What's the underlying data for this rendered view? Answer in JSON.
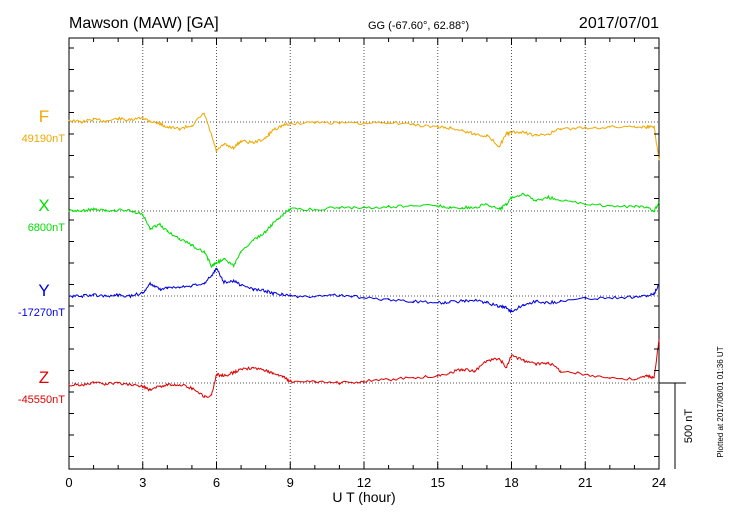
{
  "header": {
    "station": "Mawson (MAW)  [GA]",
    "coords": "GG (-67.60°,  62.88°)",
    "date": "2017/07/01"
  },
  "footer_note": "Plotted at 2017/08/01 01:36 UT",
  "scale_label": "500 nT",
  "chart_data": {
    "type": "line",
    "title": "Mawson (MAW)  [GA]",
    "xlabel": "U T (hour)",
    "xlim": [
      0,
      24
    ],
    "xticks": [
      "0",
      "3",
      "6",
      "9",
      "12",
      "15",
      "18",
      "21",
      "24"
    ],
    "grid": true,
    "y_units": "nT",
    "scale_bar_nT": 500,
    "series": [
      {
        "name": "F",
        "baseline_label": "49190nT",
        "baseline": 49190,
        "color": "#f0a800",
        "x": [
          0,
          0.5,
          1,
          1.5,
          2,
          2.5,
          3,
          3.3,
          3.7,
          4,
          4.5,
          5,
          5.5,
          5.8,
          6,
          6.3,
          6.7,
          7,
          7.5,
          8,
          8.3,
          8.7,
          9,
          10,
          11,
          12,
          13,
          14,
          15,
          15.5,
          16,
          16.5,
          17,
          17.5,
          17.8,
          18,
          18.5,
          19,
          19.5,
          20,
          21,
          22,
          23,
          23.5,
          23.8,
          24
        ],
        "y": [
          49200,
          49190,
          49205,
          49195,
          49210,
          49200,
          49215,
          49195,
          49180,
          49160,
          49150,
          49170,
          49240,
          49110,
          49020,
          49060,
          49040,
          49080,
          49070,
          49095,
          49145,
          49170,
          49180,
          49190,
          49185,
          49180,
          49190,
          49175,
          49160,
          49155,
          49140,
          49120,
          49110,
          49050,
          49120,
          49130,
          49130,
          49110,
          49120,
          49150,
          49155,
          49160,
          49165,
          49160,
          49165,
          48970
        ]
      },
      {
        "name": "X",
        "baseline_label": "6800nT",
        "baseline": 6800,
        "color": "#00e000",
        "x": [
          0,
          0.5,
          1,
          1.5,
          2,
          2.5,
          3,
          3.3,
          3.7,
          4,
          4.5,
          5,
          5.5,
          5.8,
          6,
          6.3,
          6.7,
          7,
          7.5,
          8,
          8.3,
          8.7,
          9,
          10,
          11,
          12,
          13,
          14,
          15,
          15.5,
          16,
          16.5,
          17,
          17.5,
          17.8,
          18,
          18.5,
          19,
          19.5,
          20,
          21,
          22,
          23,
          23.5,
          23.8,
          24
        ],
        "y": [
          6800,
          6800,
          6810,
          6800,
          6805,
          6800,
          6780,
          6700,
          6720,
          6680,
          6640,
          6600,
          6560,
          6480,
          6500,
          6520,
          6480,
          6560,
          6630,
          6680,
          6730,
          6780,
          6810,
          6810,
          6820,
          6820,
          6825,
          6830,
          6830,
          6820,
          6820,
          6820,
          6840,
          6810,
          6840,
          6880,
          6900,
          6860,
          6880,
          6860,
          6840,
          6830,
          6825,
          6820,
          6800,
          6850
        ]
      },
      {
        "name": "Y",
        "baseline_label": "-17270nT",
        "baseline": -17270,
        "color": "#0000e0",
        "x": [
          0,
          0.5,
          1,
          1.5,
          2,
          2.5,
          3,
          3.3,
          3.7,
          4,
          4.5,
          5,
          5.5,
          5.8,
          6,
          6.3,
          6.7,
          7,
          7.5,
          8,
          8.3,
          8.7,
          9,
          10,
          11,
          12,
          13,
          14,
          15,
          15.5,
          16,
          16.5,
          17,
          17.5,
          17.8,
          18,
          18.5,
          19,
          19.5,
          20,
          21,
          22,
          23,
          23.5,
          23.8,
          24
        ],
        "y": [
          -17270,
          -17270,
          -17265,
          -17270,
          -17265,
          -17270,
          -17250,
          -17200,
          -17230,
          -17220,
          -17220,
          -17210,
          -17200,
          -17150,
          -17110,
          -17190,
          -17180,
          -17210,
          -17230,
          -17240,
          -17255,
          -17260,
          -17270,
          -17275,
          -17265,
          -17280,
          -17290,
          -17300,
          -17310,
          -17305,
          -17300,
          -17295,
          -17310,
          -17330,
          -17340,
          -17360,
          -17320,
          -17300,
          -17310,
          -17300,
          -17285,
          -17280,
          -17275,
          -17270,
          -17260,
          -17200
        ]
      },
      {
        "name": "Z",
        "baseline_label": "-45550nT",
        "baseline": -45550,
        "color": "#e00000",
        "x": [
          0,
          0.5,
          1,
          1.5,
          2,
          2.5,
          3,
          3.3,
          3.7,
          4,
          4.5,
          5,
          5.5,
          5.8,
          6,
          6.3,
          6.7,
          7,
          7.5,
          8,
          8.3,
          8.7,
          9,
          10,
          11,
          12,
          13,
          14,
          15,
          15.5,
          16,
          16.5,
          17,
          17.5,
          17.8,
          18,
          18.5,
          19,
          19.5,
          20,
          21,
          22,
          23,
          23.5,
          23.8,
          24
        ],
        "y": [
          -45560,
          -45560,
          -45550,
          -45555,
          -45550,
          -45560,
          -45570,
          -45590,
          -45570,
          -45560,
          -45560,
          -45580,
          -45630,
          -45620,
          -45500,
          -45510,
          -45490,
          -45470,
          -45460,
          -45480,
          -45490,
          -45510,
          -45540,
          -45545,
          -45550,
          -45540,
          -45530,
          -45520,
          -45510,
          -45490,
          -45470,
          -45480,
          -45420,
          -45410,
          -45460,
          -45390,
          -45420,
          -45440,
          -45430,
          -45480,
          -45500,
          -45520,
          -45530,
          -45510,
          -45520,
          -45300
        ]
      }
    ]
  }
}
